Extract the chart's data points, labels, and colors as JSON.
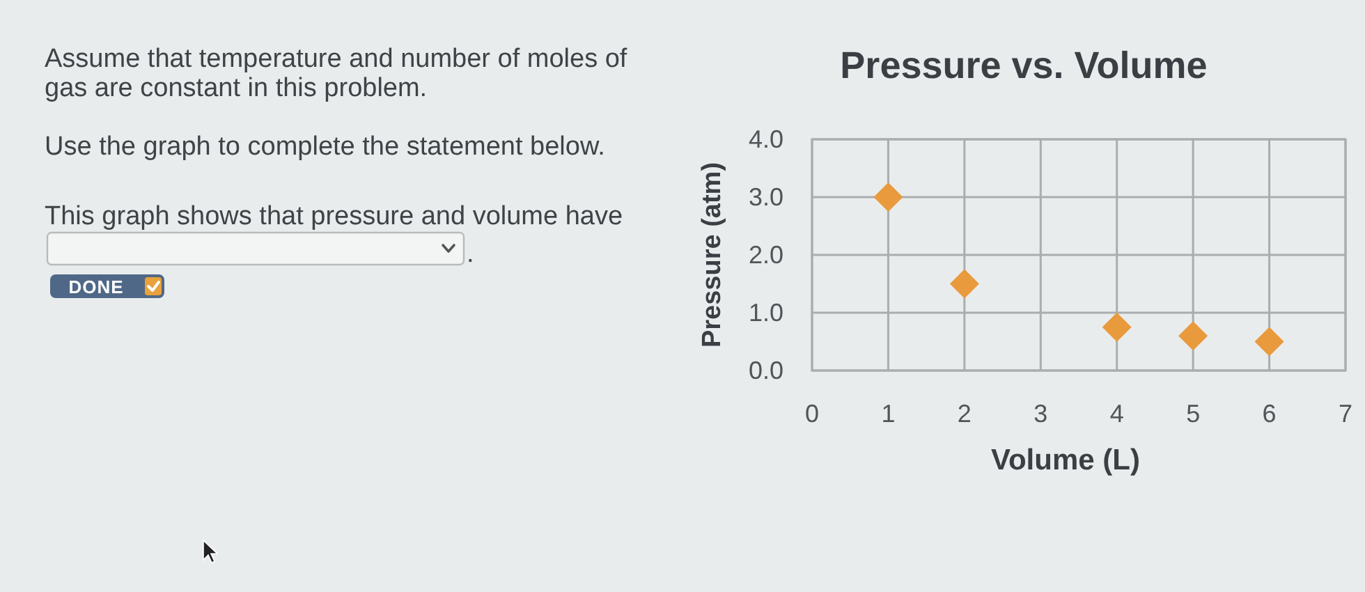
{
  "chart_data": {
    "type": "scatter",
    "title": "Pressure vs. Volume",
    "xlabel": "Volume (L)",
    "ylabel": "Pressure (atm)",
    "x": [
      1,
      2,
      4,
      5,
      6
    ],
    "values": [
      3.0,
      1.5,
      0.75,
      0.6,
      0.5
    ],
    "color": "#e99a3c",
    "marker": "diamond",
    "xlim": [
      0,
      7
    ],
    "xticks": [
      0,
      1,
      2,
      3,
      4,
      5,
      6,
      7
    ],
    "ylim": [
      0,
      4
    ],
    "yticks": [
      {
        "value": 0,
        "label": "0.0"
      },
      {
        "value": 1,
        "label": "1.0"
      },
      {
        "value": 2,
        "label": "2.0"
      },
      {
        "value": 3,
        "label": "3.0"
      },
      {
        "value": 4,
        "label": "4.0"
      }
    ],
    "grid": true,
    "annotations": [
      "Assume that temperature and number of moles of gas are constant in this problem.",
      "Use the graph to complete the statement below.",
      "This graph shows that pressure and volume have",
      ".",
      "DONE"
    ]
  }
}
